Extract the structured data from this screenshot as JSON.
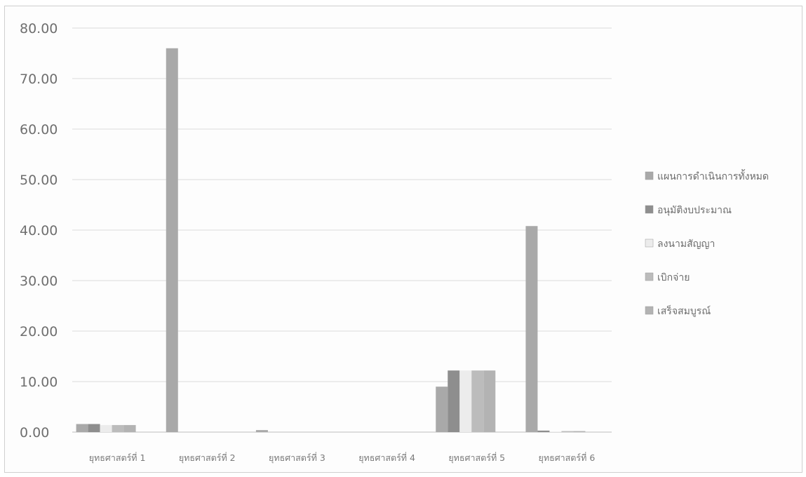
{
  "chart_data": {
    "type": "bar",
    "categories": [
      "ยุทธศาสตร์ที่ 1",
      "ยุทธศาสตร์ที่ 2",
      "ยุทธศาสตร์ที่ 3",
      "ยุทธศาสตร์ที่ 4",
      "ยุทธศาสตร์ที่ 5",
      "ยุทธศาสตร์ที่ 6"
    ],
    "series": [
      {
        "name": "แผนการดำเนินการทั้งหมด",
        "color": "#a9a9a9",
        "values": [
          1.6,
          76.0,
          0.4,
          0.0,
          9.0,
          40.8
        ]
      },
      {
        "name": "อนุมัติงบประมาณ",
        "color": "#8e8e8e",
        "values": [
          1.6,
          0.0,
          0.0,
          0.0,
          12.2,
          0.3
        ]
      },
      {
        "name": "ลงนามสัญญา",
        "color": "#ececec",
        "values": [
          1.4,
          0.0,
          0.0,
          0.0,
          12.2,
          0.1
        ]
      },
      {
        "name": "เบิกจ่าย",
        "color": "#bcbcbc",
        "values": [
          1.4,
          0.0,
          0.0,
          0.0,
          12.2,
          0.2
        ]
      },
      {
        "name": "เสร็จสมบูรณ์",
        "color": "#b3b3b3",
        "values": [
          1.4,
          0.0,
          0.0,
          0.0,
          12.2,
          0.2
        ]
      }
    ],
    "ylim": [
      0,
      80
    ],
    "yticks": [
      "0.00",
      "10.00",
      "20.00",
      "30.00",
      "40.00",
      "50.00",
      "60.00",
      "70.00",
      "80.00"
    ],
    "grid": true,
    "legend_position": "right",
    "title": "",
    "xlabel": "",
    "ylabel": ""
  }
}
